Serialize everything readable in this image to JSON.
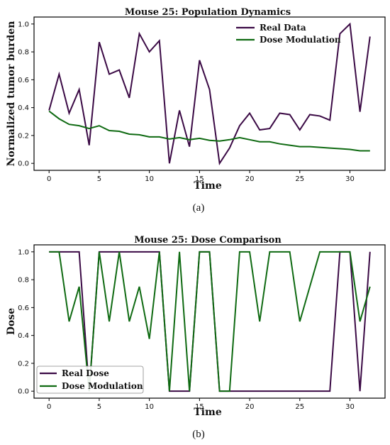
{
  "colors": {
    "real": "#3b0a45",
    "dose_mod": "#0f6a12",
    "axes": "#000000"
  },
  "chart_data": [
    {
      "type": "line",
      "title": "Mouse 25: Population Dynamics",
      "xlabel": "Time",
      "ylabel": "Normalized tumor burden",
      "xlim": [
        -1.5,
        33.5
      ],
      "ylim": [
        -0.05,
        1.05
      ],
      "xticks": [
        "0",
        "5",
        "10",
        "15",
        "20",
        "25",
        "30"
      ],
      "yticks": [
        "0.0",
        "0.2",
        "0.4",
        "0.6",
        "0.8",
        "1.0"
      ],
      "legend": "top-right",
      "caption": "(a)",
      "x": [
        0,
        1,
        2,
        3,
        4,
        5,
        6,
        7,
        8,
        9,
        10,
        11,
        12,
        13,
        14,
        15,
        16,
        17,
        18,
        19,
        20,
        21,
        22,
        23,
        24,
        25,
        26,
        27,
        28,
        29,
        30,
        31,
        32
      ],
      "series": [
        {
          "name": "Real Data",
          "color": "#3b0a45",
          "values": [
            0.38,
            0.64,
            0.36,
            0.53,
            0.13,
            0.87,
            0.64,
            0.67,
            0.47,
            0.93,
            0.8,
            0.88,
            0.0,
            0.38,
            0.12,
            0.74,
            0.53,
            0.0,
            0.11,
            0.27,
            0.36,
            0.24,
            0.25,
            0.36,
            0.35,
            0.24,
            0.35,
            0.34,
            0.31,
            0.93,
            1.0,
            0.37,
            0.91
          ]
        },
        {
          "name": "Dose Modulation",
          "color": "#0f6a12",
          "values": [
            0.375,
            0.32,
            0.28,
            0.27,
            0.25,
            0.27,
            0.235,
            0.23,
            0.21,
            0.205,
            0.19,
            0.19,
            0.175,
            0.185,
            0.17,
            0.18,
            0.165,
            0.16,
            0.17,
            0.185,
            0.17,
            0.155,
            0.155,
            0.14,
            0.13,
            0.12,
            0.12,
            0.115,
            0.11,
            0.105,
            0.1,
            0.09,
            0.09
          ]
        }
      ]
    },
    {
      "type": "line",
      "title": "Mouse 25: Dose Comparison",
      "xlabel": "Time",
      "ylabel": "Dose",
      "xlim": [
        -1.5,
        33.5
      ],
      "ylim": [
        -0.05,
        1.05
      ],
      "xticks": [
        "0",
        "5",
        "10",
        "15",
        "20",
        "25",
        "30"
      ],
      "yticks": [
        "0.0",
        "0.2",
        "0.4",
        "0.6",
        "0.8",
        "1.0"
      ],
      "legend": "bottom-left",
      "caption": "(b)",
      "x": [
        0,
        1,
        2,
        3,
        4,
        5,
        6,
        7,
        8,
        9,
        10,
        11,
        12,
        13,
        14,
        15,
        16,
        17,
        18,
        19,
        20,
        21,
        22,
        23,
        24,
        25,
        26,
        27,
        28,
        29,
        30,
        31,
        32
      ],
      "series": [
        {
          "name": "Real Dose",
          "color": "#3b0a45",
          "values": [
            1,
            1,
            1,
            1,
            0,
            1,
            1,
            1,
            1,
            1,
            1,
            1,
            0,
            0,
            0,
            1,
            1,
            0,
            0,
            0,
            0,
            0,
            0,
            0,
            0,
            0,
            0,
            0,
            0,
            1,
            1,
            0,
            1
          ]
        },
        {
          "name": "Dose Modulation",
          "color": "#0f6a12",
          "values": [
            1,
            1,
            0.5,
            0.75,
            0,
            1,
            0.5,
            1,
            0.5,
            0.75,
            0.375,
            1,
            0,
            1,
            0,
            1,
            1,
            0,
            0,
            1,
            1,
            0.5,
            1,
            1,
            1,
            0.5,
            0.75,
            1,
            1,
            1,
            1,
            0.5,
            0.75
          ]
        }
      ]
    }
  ]
}
